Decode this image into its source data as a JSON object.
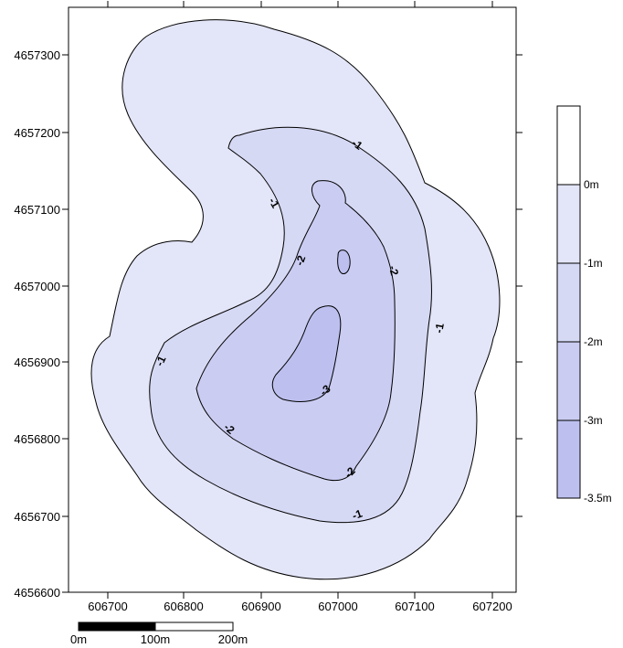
{
  "map": {
    "y_ticks": [
      "4657300",
      "4657200",
      "4657100",
      "4657000",
      "4656900",
      "4656800",
      "4656700",
      "4656600"
    ],
    "x_ticks": [
      "606700",
      "606800",
      "606900",
      "607000",
      "607100",
      "607200"
    ]
  },
  "contour_labels": [
    "-1",
    "-1",
    "-1",
    "-1",
    "-2",
    "-2",
    "-2",
    "-2",
    "-3"
  ],
  "legend": {
    "labels": [
      "0m",
      "-1m",
      "-2m",
      "-3m",
      "-3.5m"
    ],
    "colors": [
      "#ffffff",
      "#e3e5f8",
      "#d6d9f4",
      "#caccf2",
      "#bdc0ef"
    ]
  },
  "scale_bar": {
    "labels": [
      "0m",
      "100m",
      "200m"
    ]
  },
  "colors": {
    "zone_outer": "#e3e5f8",
    "zone_mid": "#d6d9f4",
    "zone_inner": "#caccf2",
    "zone_core": "#bdc0ef"
  }
}
